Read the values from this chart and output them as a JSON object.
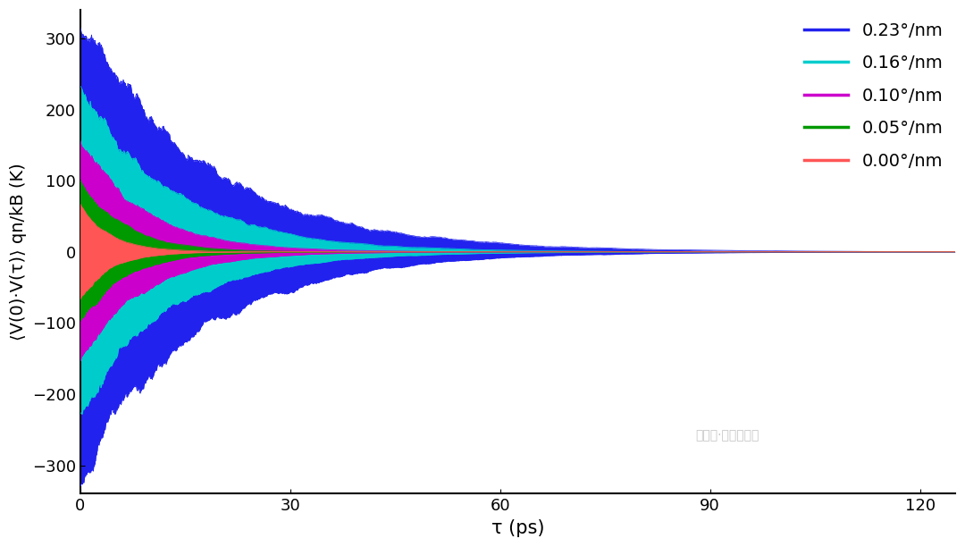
{
  "title": "",
  "xlabel": "τ (ps)",
  "ylabel": "⟨V(0)·V(τ)⟩ qn/kB (K)",
  "xlim": [
    0,
    125
  ],
  "ylim": [
    -340,
    340
  ],
  "xticks": [
    0,
    30,
    60,
    90,
    120
  ],
  "yticks": [
    -300,
    -200,
    -100,
    0,
    100,
    200,
    300
  ],
  "series": [
    {
      "label": "0.23°/nm",
      "color": "#2222EE",
      "amplitude": 320,
      "decay": 0.055,
      "neg_decay": 0.06
    },
    {
      "label": "0.16°/nm",
      "color": "#00CCCC",
      "amplitude": 230,
      "decay": 0.075,
      "neg_decay": 0.08
    },
    {
      "label": "0.10°/nm",
      "color": "#CC00CC",
      "amplitude": 160,
      "decay": 0.11,
      "neg_decay": 0.115
    },
    {
      "label": "0.05°/nm",
      "color": "#009900",
      "amplitude": 100,
      "decay": 0.16,
      "neg_decay": 0.165
    },
    {
      "label": "0.00°/nm",
      "color": "#FF5555",
      "amplitude": 65,
      "decay": 0.23,
      "neg_decay": 0.235
    }
  ],
  "t_max": 125,
  "n_points": 3000,
  "noise_window": 60,
  "noise_amplitude": 0.12,
  "background_color": "#ffffff",
  "legend_fontsize": 14,
  "axis_fontsize": 15,
  "tick_fontsize": 13
}
